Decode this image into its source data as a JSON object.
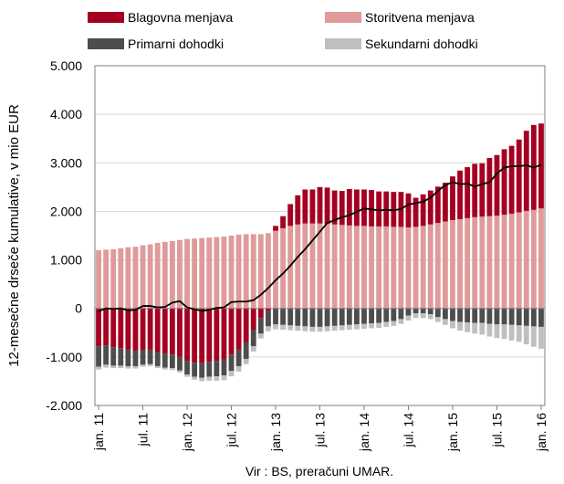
{
  "chart_data": {
    "type": "bar",
    "stacked": true,
    "ylabel": "12-mesečne drseče kumulative, v mio EUR",
    "source_note": "Vir : BS, preračuni UMAR.",
    "ylim": [
      -2000,
      5000
    ],
    "y_ticks": [
      -2000,
      -1000,
      0,
      1000,
      2000,
      3000,
      4000,
      5000
    ],
    "y_tick_labels": [
      "-2.000",
      "-1.000",
      "0",
      "1.000",
      "2.000",
      "3.000",
      "4.000",
      "5.000"
    ],
    "x_tick_labels": [
      "jan. 11",
      "jul. 11",
      "jan. 12",
      "jul. 12",
      "jan. 13",
      "jul. 13",
      "jan. 14",
      "jul. 14",
      "jan. 15",
      "jul. 15",
      "jan. 16"
    ],
    "x_tick_index": [
      0,
      6,
      12,
      18,
      24,
      30,
      36,
      42,
      48,
      54,
      60
    ],
    "grid": true,
    "legend_position": "top",
    "series": [
      {
        "name": "Blagovna menjava",
        "color": "#a50021",
        "values": [
          -780,
          -760,
          -800,
          -820,
          -850,
          -870,
          -860,
          -850,
          -900,
          -930,
          -950,
          -1000,
          -1080,
          -1120,
          -1130,
          -1100,
          -1080,
          -1050,
          -950,
          -850,
          -700,
          -450,
          -200,
          -50,
          100,
          250,
          450,
          600,
          700,
          700,
          750,
          750,
          700,
          700,
          750,
          750,
          750,
          750,
          720,
          720,
          720,
          720,
          700,
          600,
          650,
          700,
          750,
          800,
          900,
          1000,
          1050,
          1100,
          1100,
          1200,
          1250,
          1350,
          1400,
          1500,
          1650,
          1750,
          1750
        ]
      },
      {
        "name": "Storitvena menjava",
        "color": "#df9a9a",
        "values": [
          1200,
          1210,
          1220,
          1240,
          1260,
          1270,
          1300,
          1320,
          1350,
          1370,
          1390,
          1410,
          1430,
          1440,
          1450,
          1460,
          1470,
          1480,
          1500,
          1520,
          1530,
          1530,
          1530,
          1550,
          1600,
          1650,
          1700,
          1730,
          1750,
          1750,
          1750,
          1740,
          1730,
          1720,
          1710,
          1700,
          1700,
          1690,
          1690,
          1690,
          1680,
          1680,
          1670,
          1680,
          1700,
          1730,
          1760,
          1790,
          1820,
          1840,
          1860,
          1880,
          1890,
          1900,
          1910,
          1930,
          1950,
          1980,
          2010,
          2030,
          2060
        ]
      },
      {
        "name": "Primarni dohodki",
        "color": "#4d4d4d",
        "values": [
          -420,
          -400,
          -380,
          -360,
          -340,
          -320,
          -300,
          -300,
          -290,
          -290,
          -280,
          -280,
          -280,
          -290,
          -300,
          -310,
          -320,
          -330,
          -340,
          -340,
          -340,
          -330,
          -320,
          -320,
          -330,
          -340,
          -350,
          -360,
          -370,
          -380,
          -380,
          -370,
          -360,
          -350,
          -340,
          -330,
          -320,
          -310,
          -300,
          -280,
          -260,
          -220,
          -150,
          -100,
          -100,
          -120,
          -180,
          -220,
          -260,
          -280,
          -290,
          -300,
          -300,
          -320,
          -330,
          -330,
          -340,
          -350,
          -360,
          -370,
          -380
        ]
      },
      {
        "name": "Sekundarni dohodki",
        "color": "#bfbfbf",
        "values": [
          -60,
          -60,
          -50,
          -50,
          -50,
          -50,
          -40,
          -40,
          -40,
          -40,
          -40,
          -40,
          -50,
          -60,
          -70,
          -80,
          -90,
          -100,
          -110,
          -110,
          -110,
          -110,
          -100,
          -100,
          -100,
          -100,
          -100,
          -100,
          -100,
          -100,
          -100,
          -100,
          -100,
          -100,
          -100,
          -100,
          -100,
          -100,
          -100,
          -100,
          -100,
          -100,
          -100,
          -100,
          -100,
          -100,
          -100,
          -120,
          -150,
          -180,
          -200,
          -220,
          -240,
          -260,
          -280,
          -300,
          -320,
          -340,
          -380,
          -420,
          -450
        ]
      }
    ],
    "line": {
      "color": "#000000",
      "values": [
        -60,
        0,
        -10,
        0,
        -40,
        -30,
        50,
        50,
        20,
        30,
        120,
        150,
        20,
        -20,
        -50,
        -30,
        10,
        20,
        130,
        140,
        140,
        170,
        280,
        420,
        580,
        720,
        880,
        1060,
        1220,
        1400,
        1580,
        1760,
        1820,
        1880,
        1920,
        1990,
        2060,
        2040,
        2020,
        2030,
        2020,
        2050,
        2140,
        2170,
        2200,
        2280,
        2420,
        2540,
        2600,
        2560,
        2570,
        2510,
        2560,
        2600,
        2780,
        2900,
        2930,
        2930,
        2950,
        2900,
        2960
      ]
    }
  }
}
